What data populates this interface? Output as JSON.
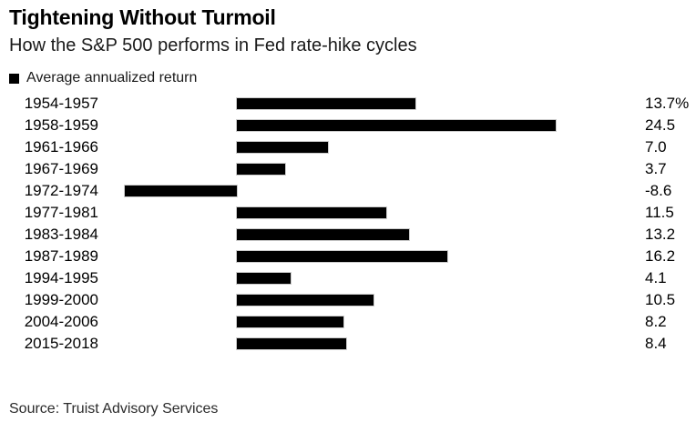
{
  "header": {
    "title": "Tightening Without Turmoil",
    "subtitle": "How the S&P 500 performs in Fed rate-hike cycles"
  },
  "legend": {
    "label": "Average annualized return",
    "swatch_color": "#000000"
  },
  "chart_data": {
    "type": "bar",
    "orientation": "horizontal",
    "title": "Tightening Without Turmoil",
    "subtitle": "How the S&P 500 performs in Fed rate-hike cycles",
    "xlabel": "",
    "ylabel": "",
    "categories": [
      "1954-1957",
      "1958-1959",
      "1961-1966",
      "1967-1969",
      "1972-1974",
      "1977-1981",
      "1983-1984",
      "1987-1989",
      "1994-1995",
      "1999-2000",
      "2004-2006",
      "2015-2018"
    ],
    "series": [
      {
        "name": "Average annualized return",
        "values": [
          13.7,
          24.5,
          7.0,
          3.7,
          -8.6,
          11.5,
          13.2,
          16.2,
          4.1,
          10.5,
          8.2,
          8.4
        ],
        "value_labels": [
          "13.7%",
          "24.5",
          "7.0",
          "3.7",
          "-8.6",
          "11.5",
          "13.2",
          "16.2",
          "4.1",
          "10.5",
          "8.2",
          "8.4"
        ]
      }
    ],
    "unit": "%",
    "xlim": [
      -8.6,
      24.5
    ],
    "grid": false,
    "legend_position": "top-left",
    "bar_color": "#000000"
  },
  "footer": {
    "source": "Source: Truist Advisory Services"
  }
}
